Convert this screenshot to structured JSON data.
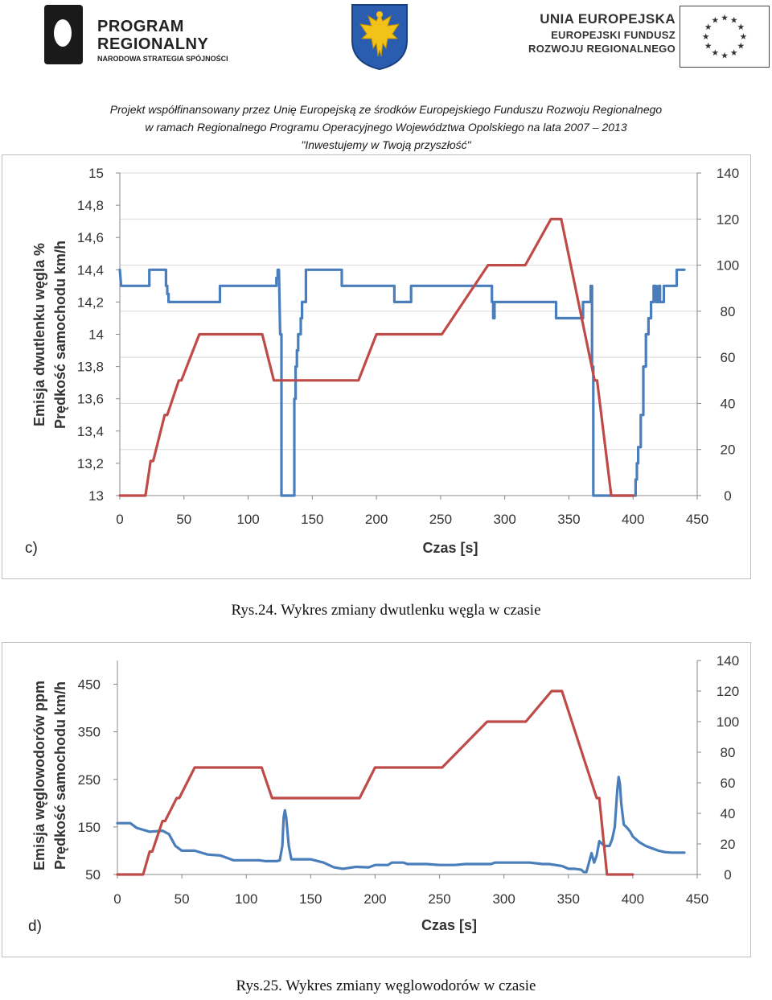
{
  "header": {
    "program_logo": {
      "line1": "PROGRAM",
      "line2": "REGIONALNY",
      "line3": "NARODOWA STRATEGIA SPÓJNOŚCI"
    },
    "eu_logo": {
      "line1": "UNIA EUROPEJSKA",
      "line2": "EUROPEJSKI FUNDUSZ",
      "line3": "ROZWOJU REGIONALNEGO"
    },
    "project_line1": "Projekt współfinansowany przez Unię Europejską ze środków Europejskiego Funduszu Rozwoju Regionalnego",
    "project_line2": "w ramach Regionalnego Programu Operacyjnego Województwa Opolskiego na lata 2007 – 2013",
    "project_line3": "\"Inwestujemy w Twoją przyszłość\""
  },
  "colors": {
    "blue": "#4a7ebb",
    "red": "#be4b48",
    "axis": "#888888",
    "grid": "#d9d9d9"
  },
  "captions": {
    "fig24": "Rys.24. Wykres zmiany dwutlenku węgla w czasie",
    "fig25": "Rys.25. Wykres zmiany węglowodorów w czasie"
  },
  "chart_data": [
    {
      "type": "line",
      "panel_label": "c)",
      "xlabel": "Czas [s]",
      "ylabel_left_line1": "Emisja dwutlenku węgla   %",
      "ylabel_left_line2": "Prędkość samochodu   km/h",
      "xlim": [
        0,
        450
      ],
      "x_ticks": [
        0,
        50,
        100,
        150,
        200,
        250,
        300,
        350,
        400,
        450
      ],
      "ylim_left": [
        13,
        15
      ],
      "y_left_ticks": [
        "13",
        "13,2",
        "13,4",
        "13,6",
        "13,8",
        "14",
        "14,2",
        "14,4",
        "14,6",
        "14,8",
        "15"
      ],
      "ylim_right": [
        0,
        140
      ],
      "y_right_ticks": [
        0,
        20,
        40,
        60,
        80,
        100,
        120,
        140
      ],
      "grid": true,
      "series": [
        {
          "axis": "left",
          "color": "#4a7ebb",
          "points": [
            [
              0,
              14.4
            ],
            [
              1,
              14.3
            ],
            [
              23,
              14.3
            ],
            [
              23,
              14.4
            ],
            [
              36,
              14.4
            ],
            [
              36,
              14.3
            ],
            [
              37,
              14.3
            ],
            [
              37,
              14.25
            ],
            [
              38,
              14.25
            ],
            [
              38,
              14.2
            ],
            [
              78,
              14.2
            ],
            [
              78,
              14.3
            ],
            [
              122,
              14.3
            ],
            [
              122,
              14.35
            ],
            [
              123,
              14.35
            ],
            [
              123,
              14.4
            ],
            [
              124,
              14.4
            ],
            [
              125,
              14.0
            ],
            [
              126,
              14.0
            ],
            [
              126,
              13.0
            ],
            [
              127,
              13.0
            ],
            [
              135,
              13.0
            ],
            [
              136,
              13.0
            ],
            [
              136,
              13.6
            ],
            [
              137,
              13.6
            ],
            [
              137,
              13.8
            ],
            [
              138,
              13.8
            ],
            [
              138,
              13.9
            ],
            [
              139,
              13.9
            ],
            [
              139,
              14.0
            ],
            [
              141,
              14.0
            ],
            [
              141,
              14.1
            ],
            [
              142,
              14.1
            ],
            [
              142,
              14.2
            ],
            [
              145,
              14.2
            ],
            [
              145,
              14.4
            ],
            [
              173,
              14.4
            ],
            [
              173,
              14.3
            ],
            [
              214,
              14.3
            ],
            [
              214,
              14.2
            ],
            [
              227,
              14.2
            ],
            [
              227,
              14.3
            ],
            [
              290,
              14.3
            ],
            [
              290,
              14.2
            ],
            [
              291,
              14.2
            ],
            [
              291,
              14.1
            ],
            [
              292,
              14.1
            ],
            [
              292,
              14.2
            ],
            [
              340,
              14.2
            ],
            [
              340,
              14.1
            ],
            [
              361,
              14.1
            ],
            [
              361,
              14.2
            ],
            [
              367,
              14.2
            ],
            [
              367,
              14.3
            ],
            [
              368,
              14.3
            ],
            [
              368,
              13.8
            ],
            [
              369,
              13.8
            ],
            [
              369,
              13.0
            ],
            [
              372,
              13.0
            ],
            [
              402,
              13.0
            ],
            [
              402,
              13.1
            ],
            [
              403,
              13.1
            ],
            [
              403,
              13.2
            ],
            [
              404,
              13.2
            ],
            [
              404,
              13.3
            ],
            [
              406,
              13.3
            ],
            [
              406,
              13.5
            ],
            [
              408,
              13.5
            ],
            [
              408,
              13.8
            ],
            [
              410,
              13.8
            ],
            [
              410,
              14.0
            ],
            [
              412,
              14.0
            ],
            [
              412,
              14.1
            ],
            [
              414,
              14.1
            ],
            [
              414,
              14.2
            ],
            [
              416,
              14.2
            ],
            [
              416,
              14.3
            ],
            [
              418,
              14.3
            ],
            [
              418,
              14.2
            ],
            [
              420,
              14.2
            ],
            [
              420,
              14.3
            ],
            [
              421,
              14.3
            ],
            [
              421,
              14.2
            ],
            [
              424,
              14.2
            ],
            [
              424,
              14.3
            ],
            [
              434,
              14.3
            ],
            [
              434,
              14.4
            ],
            [
              440,
              14.4
            ]
          ]
        },
        {
          "axis": "right",
          "color": "#be4b48",
          "points": [
            [
              0,
              0
            ],
            [
              20,
              0
            ],
            [
              24,
              15
            ],
            [
              26,
              15
            ],
            [
              35,
              35
            ],
            [
              37,
              35
            ],
            [
              46,
              50
            ],
            [
              48,
              50
            ],
            [
              62,
              70
            ],
            [
              111,
              70
            ],
            [
              120,
              50
            ],
            [
              186,
              50
            ],
            [
              200,
              70
            ],
            [
              251,
              70
            ],
            [
              287,
              100
            ],
            [
              316,
              100
            ],
            [
              336,
              120
            ],
            [
              344,
              120
            ],
            [
              370,
              50
            ],
            [
              372,
              50
            ],
            [
              383,
              0
            ],
            [
              400,
              0
            ]
          ]
        }
      ]
    },
    {
      "type": "line",
      "panel_label": "d)",
      "xlabel": "Czas [s]",
      "ylabel_left_line1": "Emisja węglowodorów   ppm",
      "ylabel_left_line2": "Prędkość samochodu   km/h",
      "xlim": [
        0,
        450
      ],
      "x_ticks": [
        0,
        50,
        100,
        150,
        200,
        250,
        300,
        350,
        400,
        450
      ],
      "ylim_left": [
        50,
        500
      ],
      "y_left_ticks": [
        50,
        150,
        250,
        350,
        450
      ],
      "ylim_right": [
        0,
        140
      ],
      "y_right_ticks": [
        0,
        20,
        40,
        60,
        80,
        100,
        120,
        140
      ],
      "grid": false,
      "series": [
        {
          "axis": "left",
          "color": "#4a7ebb",
          "points": [
            [
              0,
              158
            ],
            [
              10,
              158
            ],
            [
              15,
              148
            ],
            [
              25,
              140
            ],
            [
              35,
              142
            ],
            [
              40,
              135
            ],
            [
              45,
              110
            ],
            [
              50,
              100
            ],
            [
              60,
              100
            ],
            [
              70,
              92
            ],
            [
              80,
              90
            ],
            [
              90,
              80
            ],
            [
              110,
              80
            ],
            [
              115,
              78
            ],
            [
              124,
              78
            ],
            [
              126,
              80
            ],
            [
              128,
              110
            ],
            [
              129,
              170
            ],
            [
              130,
              185
            ],
            [
              131,
              170
            ],
            [
              133,
              110
            ],
            [
              135,
              82
            ],
            [
              150,
              82
            ],
            [
              160,
              75
            ],
            [
              168,
              65
            ],
            [
              175,
              62
            ],
            [
              185,
              66
            ],
            [
              195,
              65
            ],
            [
              200,
              70
            ],
            [
              210,
              70
            ],
            [
              213,
              75
            ],
            [
              222,
              75
            ],
            [
              225,
              72
            ],
            [
              240,
              72
            ],
            [
              250,
              70
            ],
            [
              262,
              70
            ],
            [
              270,
              72
            ],
            [
              290,
              72
            ],
            [
              293,
              75
            ],
            [
              300,
              75
            ],
            [
              320,
              75
            ],
            [
              330,
              72
            ],
            [
              335,
              72
            ],
            [
              345,
              68
            ],
            [
              350,
              62
            ],
            [
              355,
              62
            ],
            [
              360,
              60
            ],
            [
              362,
              55
            ],
            [
              364,
              55
            ],
            [
              366,
              75
            ],
            [
              368,
              95
            ],
            [
              370,
              75
            ],
            [
              372,
              90
            ],
            [
              374,
              120
            ],
            [
              378,
              110
            ],
            [
              382,
              110
            ],
            [
              384,
              125
            ],
            [
              386,
              150
            ],
            [
              388,
              230
            ],
            [
              389,
              255
            ],
            [
              390,
              240
            ],
            [
              391,
              200
            ],
            [
              393,
              155
            ],
            [
              395,
              150
            ],
            [
              398,
              140
            ],
            [
              400,
              130
            ],
            [
              405,
              118
            ],
            [
              410,
              110
            ],
            [
              415,
              105
            ],
            [
              420,
              100
            ],
            [
              425,
              97
            ],
            [
              430,
              96
            ],
            [
              440,
              96
            ]
          ]
        },
        {
          "axis": "right",
          "color": "#be4b48",
          "points": [
            [
              0,
              0
            ],
            [
              20,
              0
            ],
            [
              25,
              15
            ],
            [
              27,
              15
            ],
            [
              35,
              35
            ],
            [
              37,
              35
            ],
            [
              46,
              50
            ],
            [
              48,
              50
            ],
            [
              60,
              70
            ],
            [
              112,
              70
            ],
            [
              120,
              50
            ],
            [
              188,
              50
            ],
            [
              200,
              70
            ],
            [
              252,
              70
            ],
            [
              287,
              100
            ],
            [
              317,
              100
            ],
            [
              337,
              120
            ],
            [
              345,
              120
            ],
            [
              372,
              50
            ],
            [
              374,
              50
            ],
            [
              380,
              0
            ],
            [
              400,
              0
            ]
          ]
        }
      ]
    }
  ]
}
